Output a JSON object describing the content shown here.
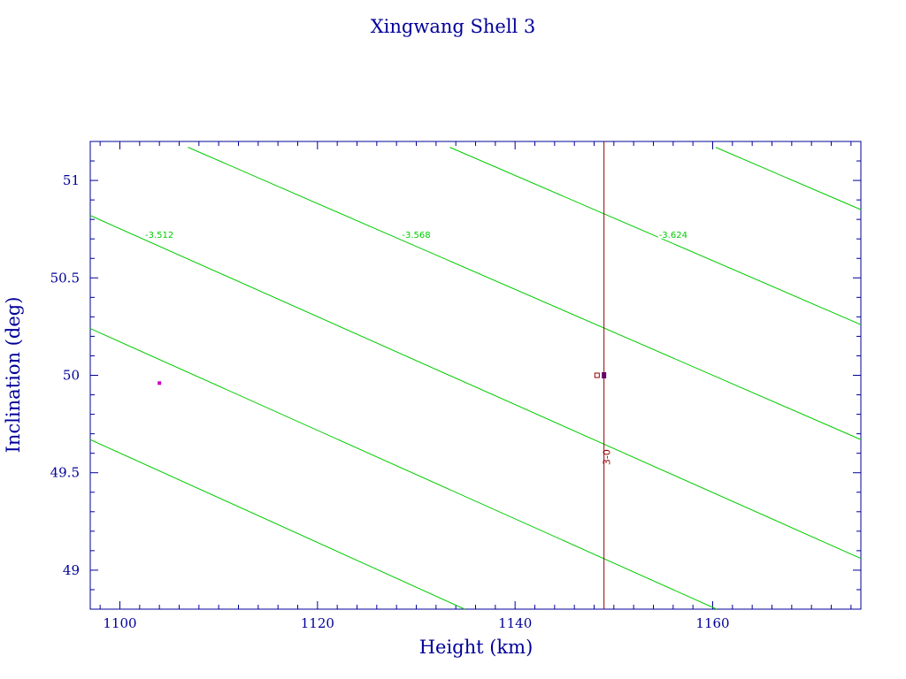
{
  "chart_data": {
    "type": "line",
    "title": "Xingwang Shell 3",
    "xlabel": "Height (km)",
    "ylabel": "Inclination (deg)",
    "xlim": [
      1097,
      1175
    ],
    "ylim": [
      48.8,
      51.2
    ],
    "xticks": [
      1100,
      1120,
      1140,
      1160
    ],
    "xtick_labels": [
      "1100",
      "1120",
      "1140",
      "1160"
    ],
    "yticks": [
      49,
      49.5,
      50,
      50.5,
      51
    ],
    "ytick_labels": [
      "49",
      "49.5",
      "50",
      "50.5",
      "51"
    ],
    "grid": false,
    "colors": {
      "frame": "#000099",
      "contour": "#00cc00",
      "reference": "#990000",
      "point": "#cc00cc",
      "marker": "#660066"
    },
    "contours": [
      {
        "x": [
          1097,
          1134.9
        ],
        "y": [
          49.67,
          48.8
        ]
      },
      {
        "x": [
          1097,
          1160.4
        ],
        "y": [
          50.24,
          48.8
        ]
      },
      {
        "x": [
          1097,
          1175
        ],
        "y": [
          50.82,
          49.06
        ],
        "label": "-3.512",
        "label_at": [
          1104,
          50.72
        ]
      },
      {
        "x": [
          1106.9,
          1175
        ],
        "y": [
          51.17,
          49.67
        ],
        "label": "-3.568",
        "label_at": [
          1130,
          50.72
        ]
      },
      {
        "x": [
          1133.4,
          1175
        ],
        "y": [
          51.17,
          50.26
        ],
        "label": "-3.624",
        "label_at": [
          1156,
          50.72
        ]
      },
      {
        "x": [
          1160.3,
          1175
        ],
        "y": [
          51.17,
          50.85
        ]
      }
    ],
    "reference_line": {
      "x": 1149,
      "label": "3-0",
      "label_at": [
        1149.6,
        49.58
      ]
    },
    "points": [
      {
        "x": 1104,
        "y": 49.96,
        "color": "point"
      },
      {
        "x": 1149,
        "y": 50.0,
        "color": "marker",
        "style": "filled"
      },
      {
        "x": 1148.7,
        "y": 50.0,
        "color": "reference",
        "style": "open"
      }
    ]
  }
}
